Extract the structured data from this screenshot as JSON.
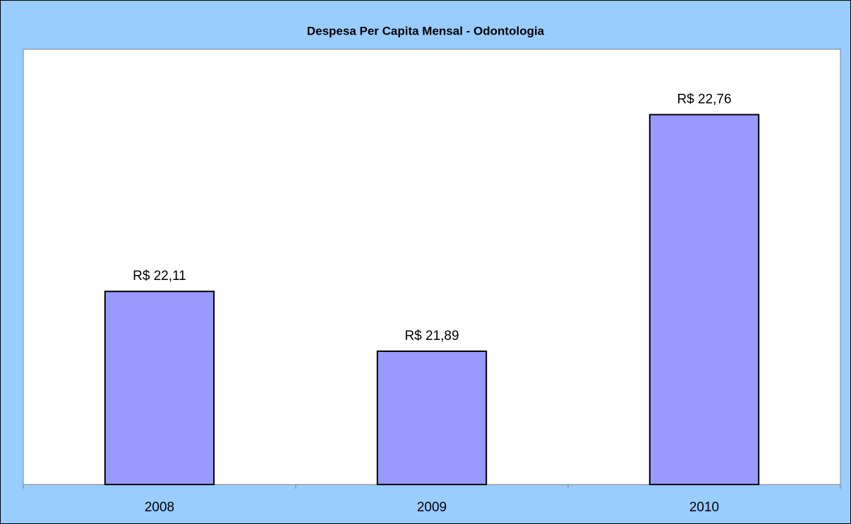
{
  "chart_data": {
    "type": "bar",
    "title": "Despesa Per Capita Mensal - Odontologia",
    "categories": [
      "2008",
      "2009",
      "2010"
    ],
    "values": [
      22.11,
      21.89,
      22.76
    ],
    "value_labels": [
      "R$ 22,11",
      "R$ 21,89",
      "R$ 22,76"
    ],
    "color": "#9999ff",
    "ylim": [
      21.4,
      23.0
    ]
  }
}
